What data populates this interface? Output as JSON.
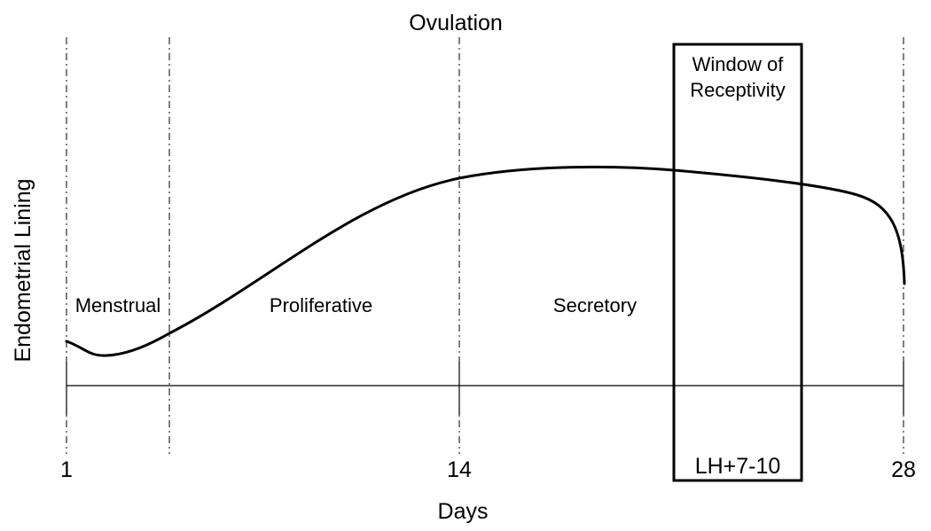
{
  "chart_data": {
    "type": "line",
    "title": "",
    "xlabel": "Days",
    "ylabel": "Endometrial Lining",
    "xlim": [
      1,
      28
    ],
    "x_ticks": [
      "1",
      "14",
      "28"
    ],
    "markers": {
      "top_label": "Ovulation"
    },
    "phases": [
      {
        "label": "Menstrual"
      },
      {
        "label": "Proliferative"
      },
      {
        "label": "Secretory"
      }
    ],
    "window": {
      "title_line1": "Window of",
      "title_line2": "Receptivity",
      "note": "LH+7-10"
    }
  }
}
